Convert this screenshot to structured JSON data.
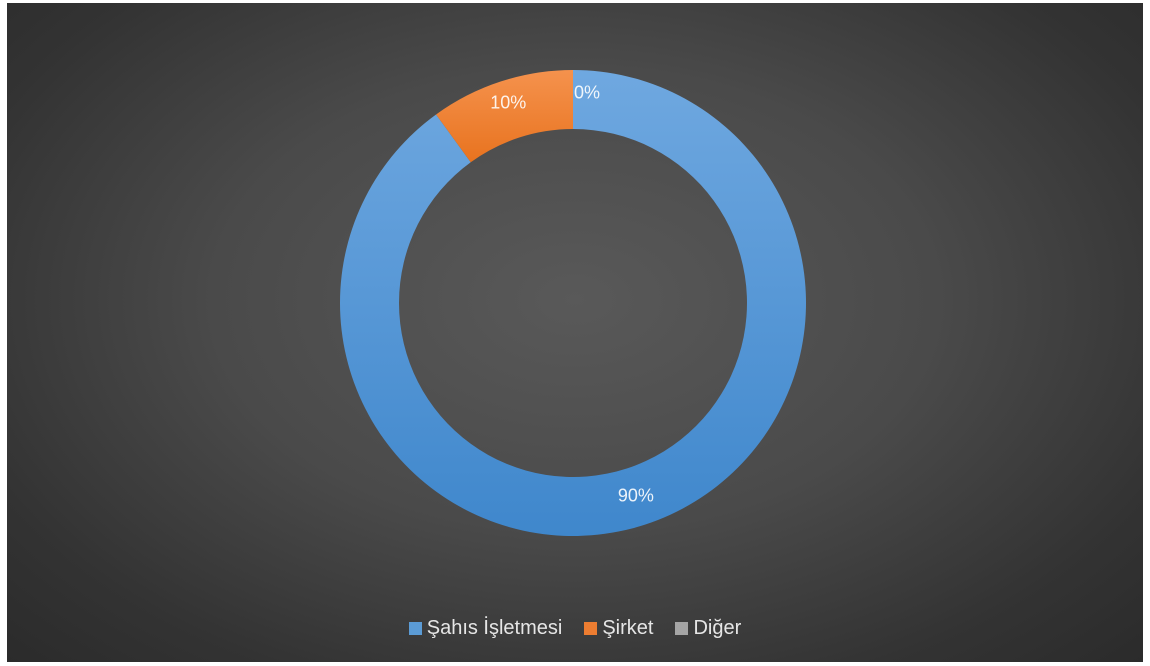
{
  "chart_data": {
    "type": "donut",
    "title": "",
    "categories": [
      "Şahıs İşletmesi",
      "Şirket",
      "Diğer"
    ],
    "values": [
      90,
      10,
      0
    ],
    "data_labels": [
      "90%",
      "10%",
      "0%"
    ],
    "colors": [
      "#5b9bd5",
      "#ed7d31",
      "#a5a5a5"
    ],
    "legend_position": "bottom",
    "unit": "%"
  }
}
